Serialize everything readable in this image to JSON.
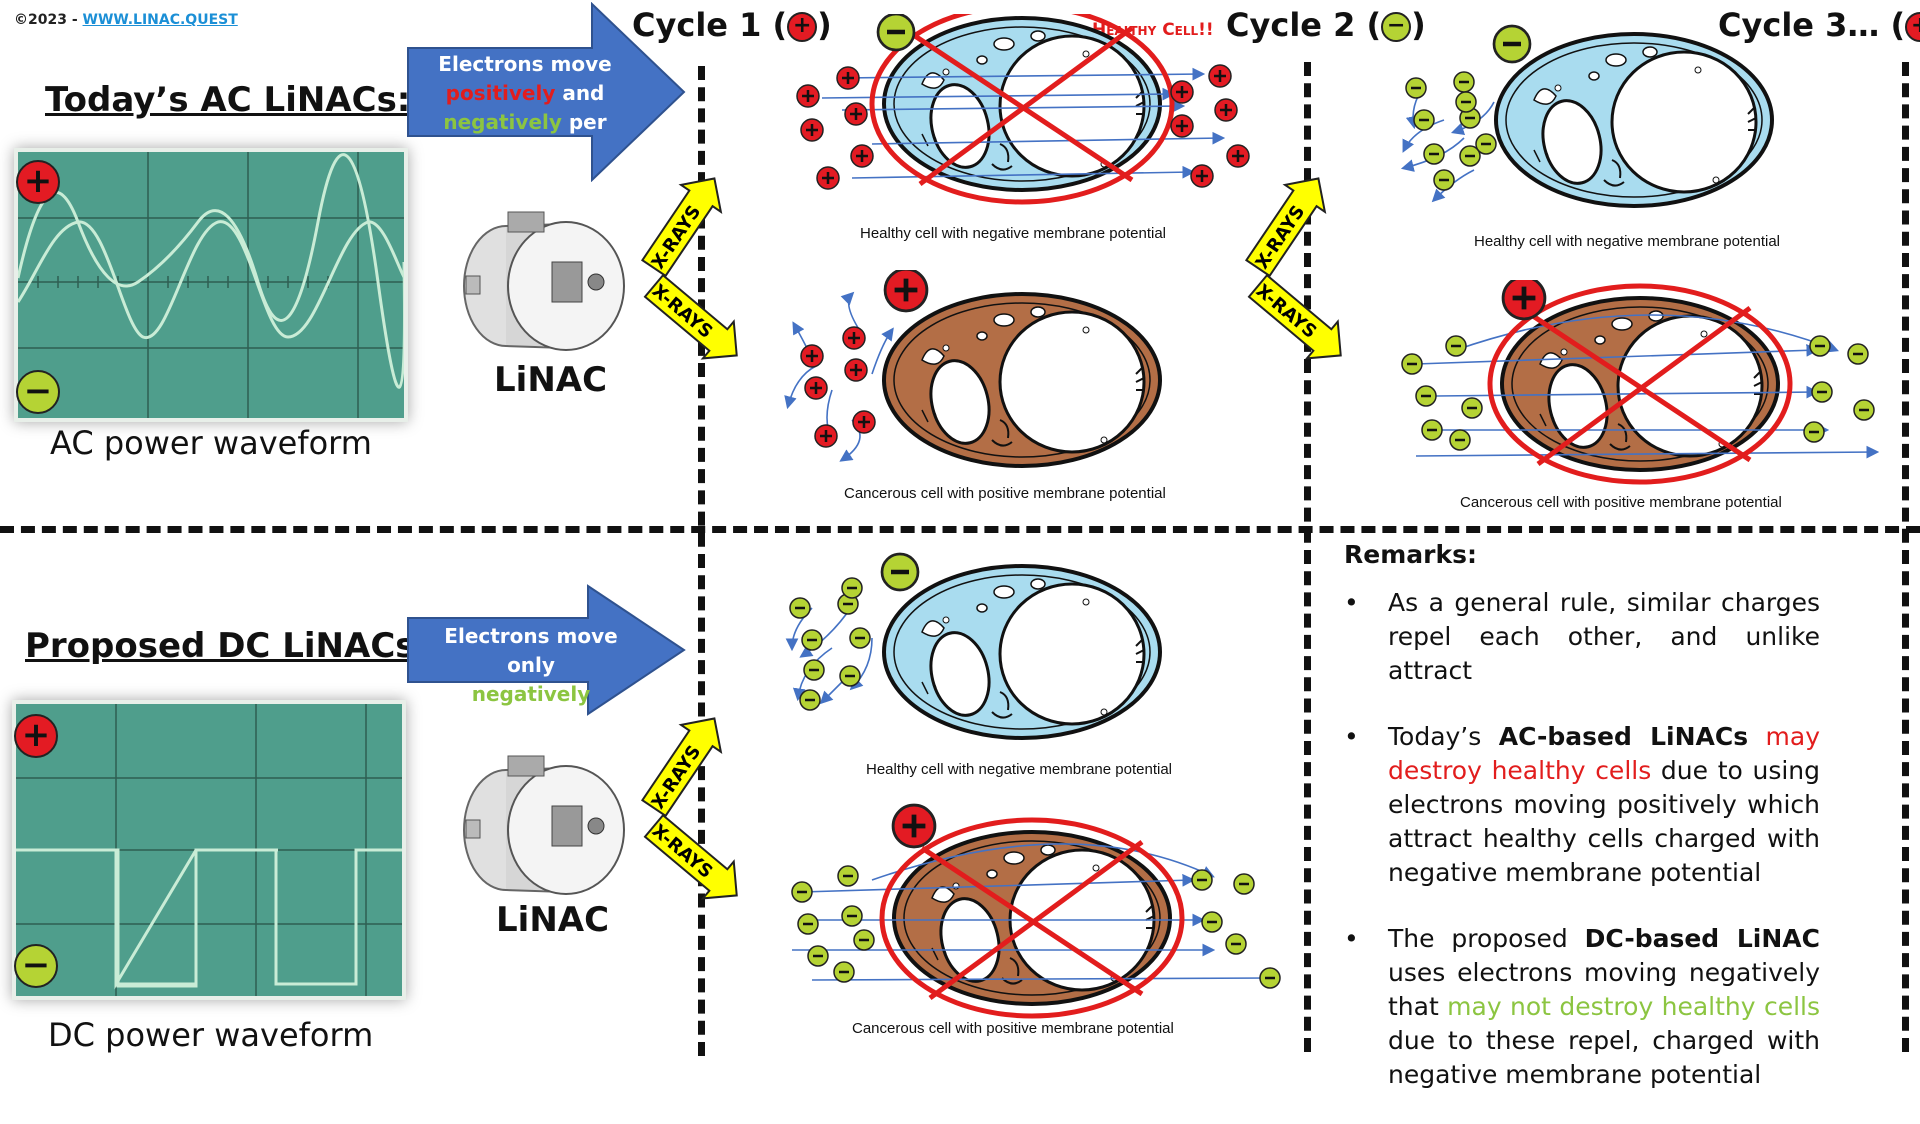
{
  "copyright": {
    "prefix": "©2023 - ",
    "link": "WWW.LINAC.QUEST"
  },
  "top": {
    "heading": "Today’s AC LiNACs:",
    "waveform_caption": "AC power waveform",
    "arrow_text": [
      "Electrons move",
      "positively",
      " and",
      "negatively",
      " per cycle"
    ],
    "linac_label": "LiNAC",
    "xray_label": "X-RAYS"
  },
  "bottom": {
    "heading": "Proposed DC LiNACs:",
    "waveform_caption": "DC power waveform",
    "arrow_text": [
      "Electrons move only",
      "negatively"
    ],
    "linac_label": "LiNAC",
    "xray_label": "X-RAYS"
  },
  "cycles": {
    "c1": "Cycle 1 (",
    "c2": "Cycle 2 (",
    "c3": "Cycle 3… (",
    "close": ")",
    "healthy_alert": "Healthy Cell!!"
  },
  "captions": {
    "healthy": "Healthy cell with negative membrane potential",
    "cancer": "Cancerous cell with positive membrane potential"
  },
  "signs": {
    "plus": "+",
    "minus": "−"
  },
  "remarks": {
    "title": "Remarks:",
    "r1": "As a general rule, similar charges repel each other, and unlike attract",
    "r2_a": "Today’s ",
    "r2_b": "AC-based LiNACs",
    "r2_c": " ",
    "r2_d": "may destroy healthy cells",
    "r2_e": " due to using electrons moving positively which attract healthy cells charged with negative membrane potential",
    "r3_a": "The proposed ",
    "r3_b": "DC-based LiNAC",
    "r3_c": " uses electrons moving negatively that ",
    "r3_d": "may not destroy healthy cells",
    "r3_e": " due to these repel, charged with negative membrane potential"
  },
  "colors": {
    "arrow_blue": "#4472c4",
    "plus_red": "#e31b23",
    "minus_green": "#b5d334",
    "healthy_fill": "#a9dcef",
    "cancer_fill": "#b36e46",
    "scope": "#4f9e8c",
    "xray_yellow": "#ffff00",
    "cross_red": "#e21d1d"
  }
}
